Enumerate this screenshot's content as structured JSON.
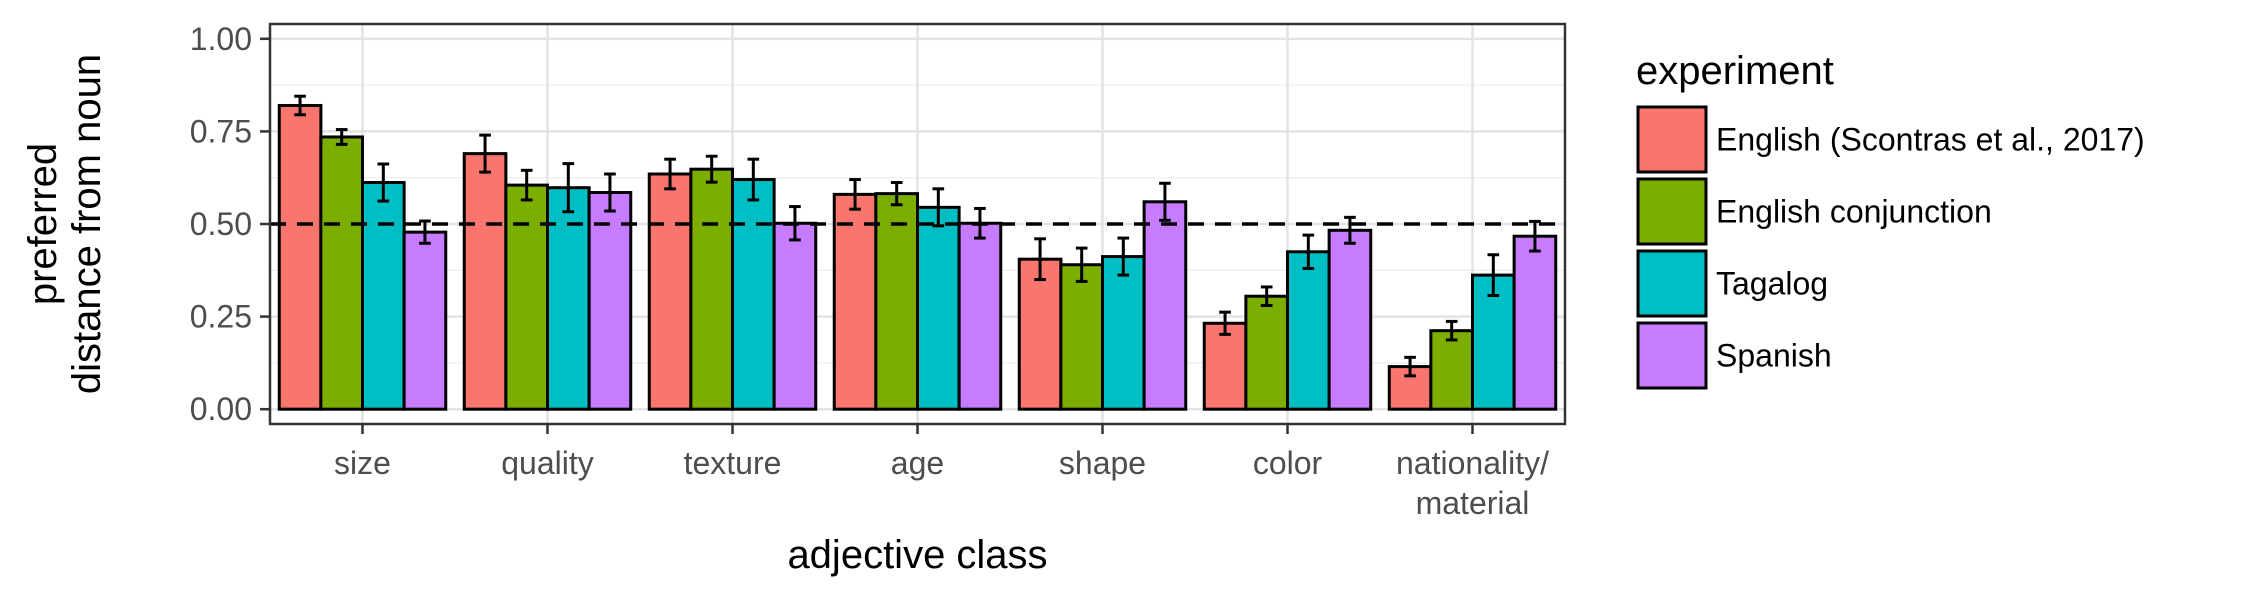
{
  "chart_data": {
    "type": "bar",
    "xlabel": "adjective class",
    "ylabel": [
      "preferred",
      "distance from noun"
    ],
    "ylim": [
      -0.04,
      1.04
    ],
    "yticks": [
      0,
      0.25,
      0.5,
      0.75,
      1
    ],
    "ytick_labels": [
      "0.00",
      "0.25",
      "0.50",
      "0.75",
      "1.00"
    ],
    "reference_line": 0.5,
    "grid": true,
    "legend": {
      "title": "experiment",
      "placement": "right"
    },
    "categories": [
      [
        "size"
      ],
      [
        "quality"
      ],
      [
        "texture"
      ],
      [
        "age"
      ],
      [
        "shape"
      ],
      [
        "color"
      ],
      [
        "nationality/",
        "material"
      ]
    ],
    "series": [
      {
        "name": "English (Scontras et al., 2017)",
        "color": "#F8766D",
        "values": [
          0.82,
          0.69,
          0.635,
          0.58,
          0.405,
          0.232,
          0.115
        ],
        "errors": [
          0.025,
          0.05,
          0.04,
          0.04,
          0.055,
          0.03,
          0.025
        ]
      },
      {
        "name": "English conjunction",
        "color": "#7CAE00",
        "values": [
          0.735,
          0.605,
          0.648,
          0.582,
          0.39,
          0.305,
          0.212
        ],
        "errors": [
          0.02,
          0.04,
          0.035,
          0.03,
          0.045,
          0.025,
          0.025
        ]
      },
      {
        "name": "Tagalog",
        "color": "#00BFC4",
        "values": [
          0.612,
          0.598,
          0.62,
          0.545,
          0.412,
          0.425,
          0.362
        ],
        "errors": [
          0.05,
          0.065,
          0.055,
          0.05,
          0.05,
          0.045,
          0.055
        ]
      },
      {
        "name": "Spanish",
        "color": "#C77CFF",
        "values": [
          0.478,
          0.585,
          0.502,
          0.502,
          0.56,
          0.483,
          0.467
        ],
        "errors": [
          0.03,
          0.05,
          0.045,
          0.04,
          0.05,
          0.035,
          0.04
        ]
      }
    ]
  }
}
